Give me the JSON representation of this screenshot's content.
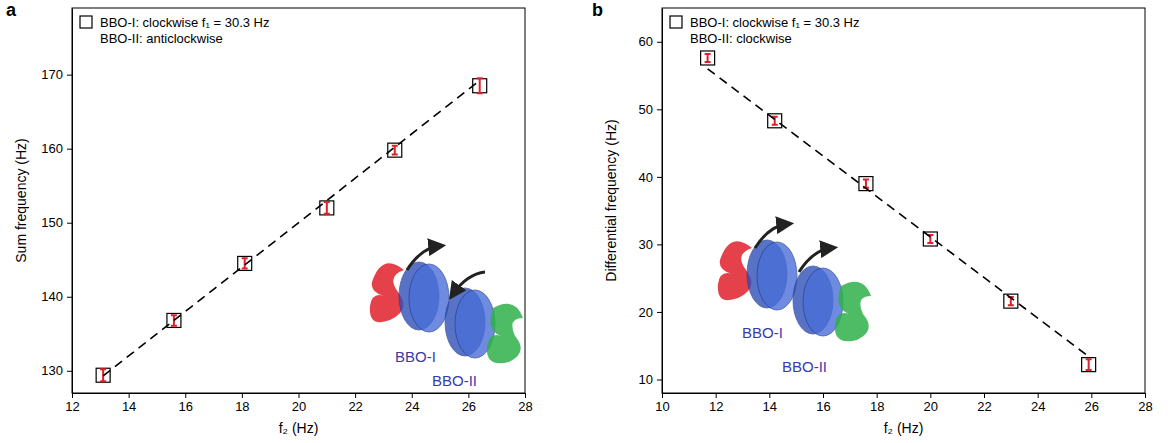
{
  "chart_data": [
    {
      "type": "scatter",
      "panel": "a",
      "x_label": "f₂ (Hz)",
      "y_label": "Sum frequency (Hz)",
      "xlim": [
        12,
        28
      ],
      "xticks": [
        12,
        14,
        16,
        18,
        20,
        22,
        24,
        26,
        28
      ],
      "ylim": [
        127,
        179
      ],
      "yticks": [
        130,
        140,
        150,
        160,
        170
      ],
      "legend": "upper left",
      "legend_note": "BBO-II: anticlockwise",
      "inset_labels": [
        "BBO-I",
        "BBO-II"
      ],
      "series": [
        {
          "name": "BBO-I: clockwise f₁ = 30.3 Hz",
          "type": "scatter",
          "marker": "square",
          "color": "#000000",
          "x": [
            13.1,
            15.6,
            18.1,
            21.0,
            23.4,
            26.4
          ],
          "values": [
            129.4,
            136.8,
            144.5,
            152.0,
            159.8,
            168.5
          ],
          "errors": [
            0.8,
            0.7,
            0.7,
            0.8,
            0.6,
            1.0
          ]
        },
        {
          "type": "line",
          "line_style": "dashed",
          "color": "#000000",
          "x": [
            13.1,
            26.4
          ],
          "values": [
            129.3,
            169.2
          ]
        }
      ]
    },
    {
      "type": "scatter",
      "panel": "b",
      "x_label": "f₂ (Hz)",
      "y_label": "Differential frequency (Hz)",
      "xlim": [
        10,
        28
      ],
      "xticks": [
        10,
        12,
        14,
        16,
        18,
        20,
        22,
        24,
        26,
        28
      ],
      "ylim": [
        8,
        65
      ],
      "yticks": [
        10,
        20,
        30,
        40,
        50,
        60
      ],
      "legend": "upper left",
      "legend_note": "BBO-II: clockwise",
      "inset_labels": [
        "BBO-I",
        "BBO-II"
      ],
      "series": [
        {
          "name": "BBO-I: clockwise f₁ = 30.3 Hz",
          "type": "scatter",
          "marker": "square",
          "color": "#000000",
          "x": [
            11.7,
            14.2,
            17.6,
            20.0,
            23.0,
            25.9
          ],
          "values": [
            57.6,
            48.3,
            39.0,
            30.8,
            21.6,
            12.2
          ],
          "errors": [
            0.6,
            0.6,
            0.6,
            0.6,
            0.6,
            0.8
          ]
        },
        {
          "type": "line",
          "line_style": "dashed",
          "color": "#000000",
          "x": [
            11.7,
            25.9
          ],
          "values": [
            56.0,
            13.4
          ]
        }
      ]
    }
  ]
}
